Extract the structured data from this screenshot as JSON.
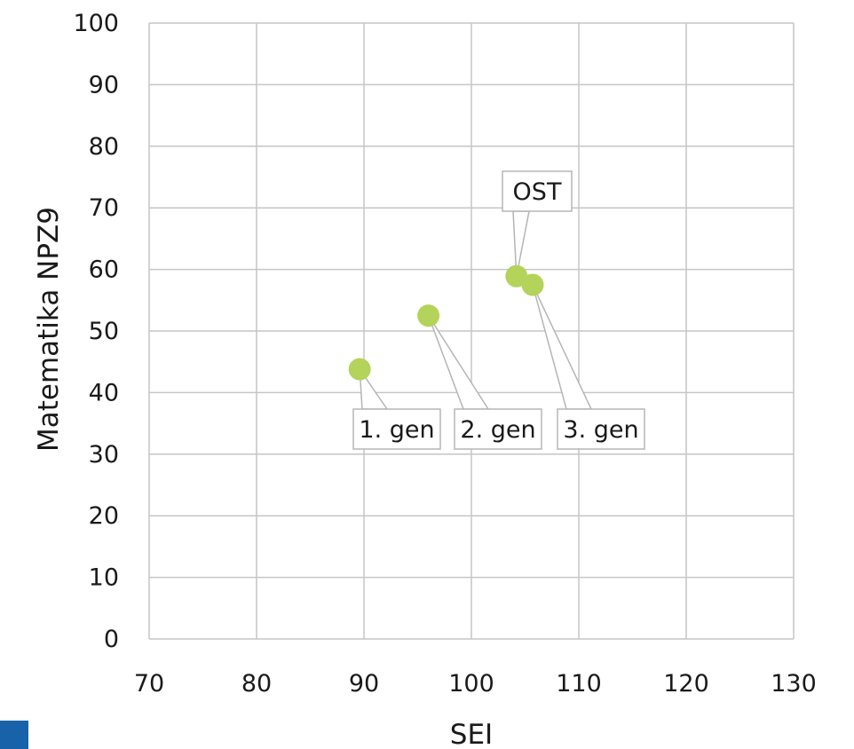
{
  "chart_data": {
    "type": "scatter",
    "title": "",
    "xlabel": "SEI",
    "ylabel": "Matematika NPZ9",
    "xlim": [
      70,
      130
    ],
    "ylim": [
      0,
      100
    ],
    "x_ticks": [
      70,
      80,
      90,
      100,
      110,
      120,
      130
    ],
    "y_ticks": [
      0,
      10,
      20,
      30,
      40,
      50,
      60,
      70,
      80,
      90,
      100
    ],
    "grid": true,
    "legend": "none",
    "marker_color": "#b3d35a",
    "points": [
      {
        "label": "1. gen",
        "x": 89.6,
        "y": 43.8
      },
      {
        "label": "2. gen",
        "x": 96.0,
        "y": 52.5
      },
      {
        "label": "OST",
        "x": 104.2,
        "y": 58.9
      },
      {
        "label": "3. gen",
        "x": 105.7,
        "y": 57.5
      }
    ]
  },
  "decoration": {
    "corner_mark_color": "#1762a8"
  }
}
